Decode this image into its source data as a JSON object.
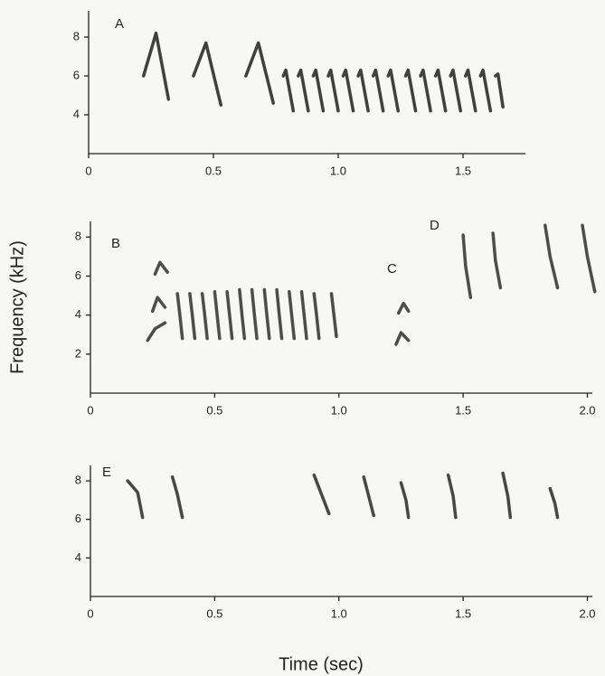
{
  "axis_labels": {
    "x": "Time (sec)",
    "y": "Frequency (kHz)"
  },
  "chart_data": [
    {
      "type": "spectrogram",
      "labels": [
        "A"
      ],
      "xlim": [
        0,
        1.75
      ],
      "ylim": [
        2,
        9.35
      ],
      "xticks": [
        0,
        0.5,
        {
          "value": 1,
          "label": "1.0"
        },
        1.5
      ],
      "yticks": [
        4,
        6,
        8
      ],
      "color": "#2b2b2b",
      "syllables": [
        {
          "x": [
            0.22,
            0.27,
            0.32
          ],
          "y": [
            6,
            8.2,
            4.8
          ]
        },
        {
          "x": [
            0.42,
            0.47,
            0.53
          ],
          "y": [
            6,
            7.7,
            4.5
          ]
        },
        {
          "x": [
            0.63,
            0.68,
            0.74
          ],
          "y": [
            6,
            7.7,
            4.6
          ]
        },
        {
          "x": [
            0.78,
            0.79,
            0.82
          ],
          "y": [
            6,
            6.3,
            4.2
          ]
        },
        {
          "x": [
            0.84,
            0.85,
            0.88
          ],
          "y": [
            6,
            6.3,
            4.2
          ]
        },
        {
          "x": [
            0.9,
            0.91,
            0.94
          ],
          "y": [
            6,
            6.3,
            4.2
          ]
        },
        {
          "x": [
            0.96,
            0.97,
            1.0
          ],
          "y": [
            6,
            6.3,
            4.2
          ]
        },
        {
          "x": [
            1.02,
            1.03,
            1.06
          ],
          "y": [
            6,
            6.3,
            4.2
          ]
        },
        {
          "x": [
            1.08,
            1.09,
            1.12
          ],
          "y": [
            6,
            6.3,
            4.2
          ]
        },
        {
          "x": [
            1.14,
            1.15,
            1.18
          ],
          "y": [
            6,
            6.3,
            4.2
          ]
        },
        {
          "x": [
            1.2,
            1.21,
            1.24
          ],
          "y": [
            6,
            6.3,
            4.2
          ]
        },
        {
          "x": [
            1.27,
            1.28,
            1.31
          ],
          "y": [
            6,
            6.3,
            4.2
          ]
        },
        {
          "x": [
            1.33,
            1.34,
            1.37
          ],
          "y": [
            6,
            6.3,
            4.2
          ]
        },
        {
          "x": [
            1.39,
            1.4,
            1.43
          ],
          "y": [
            6,
            6.3,
            4.2
          ]
        },
        {
          "x": [
            1.45,
            1.46,
            1.49
          ],
          "y": [
            6,
            6.3,
            4.2
          ]
        },
        {
          "x": [
            1.51,
            1.52,
            1.55
          ],
          "y": [
            6,
            6.3,
            4.2
          ]
        },
        {
          "x": [
            1.57,
            1.58,
            1.61
          ],
          "y": [
            6,
            6.3,
            4.2
          ]
        },
        {
          "x": [
            1.63,
            1.64,
            1.66
          ],
          "y": [
            6,
            6.1,
            4.4
          ]
        }
      ]
    },
    {
      "type": "spectrogram",
      "labels": [
        "B",
        "C",
        "D"
      ],
      "xlim": [
        0,
        2.02
      ],
      "ylim": [
        0,
        8.8
      ],
      "xticks": [
        0,
        0.5,
        {
          "value": 1,
          "label": "1.0"
        },
        1.5,
        {
          "value": 2,
          "label": "2.0"
        }
      ],
      "yticks": [
        2,
        4,
        6,
        8
      ],
      "color": "#3a3a3a",
      "syllables": [
        {
          "x": [
            0.26,
            0.28,
            0.31
          ],
          "y": [
            6.1,
            6.7,
            6.2
          ]
        },
        {
          "x": [
            0.25,
            0.27,
            0.3
          ],
          "y": [
            4.2,
            4.9,
            4.4
          ]
        },
        {
          "x": [
            0.23,
            0.26,
            0.3
          ],
          "y": [
            2.7,
            3.3,
            3.6
          ]
        },
        {
          "x": [
            0.35,
            0.36,
            0.37
          ],
          "y": [
            5.1,
            4.0,
            2.8
          ]
        },
        {
          "x": [
            0.4,
            0.41,
            0.42
          ],
          "y": [
            5.1,
            4.0,
            2.8
          ]
        },
        {
          "x": [
            0.45,
            0.46,
            0.47
          ],
          "y": [
            5.1,
            4.0,
            2.8
          ]
        },
        {
          "x": [
            0.5,
            0.51,
            0.52
          ],
          "y": [
            5.2,
            4.0,
            2.8
          ]
        },
        {
          "x": [
            0.55,
            0.56,
            0.57
          ],
          "y": [
            5.2,
            4.0,
            2.8
          ]
        },
        {
          "x": [
            0.6,
            0.61,
            0.62
          ],
          "y": [
            5.3,
            4.0,
            2.8
          ]
        },
        {
          "x": [
            0.65,
            0.66,
            0.67
          ],
          "y": [
            5.3,
            4.0,
            2.8
          ]
        },
        {
          "x": [
            0.7,
            0.71,
            0.72
          ],
          "y": [
            5.3,
            4.0,
            2.8
          ]
        },
        {
          "x": [
            0.75,
            0.76,
            0.77
          ],
          "y": [
            5.3,
            4.0,
            2.8
          ]
        },
        {
          "x": [
            0.8,
            0.81,
            0.82
          ],
          "y": [
            5.2,
            4.0,
            2.8
          ]
        },
        {
          "x": [
            0.85,
            0.86,
            0.87
          ],
          "y": [
            5.2,
            4.0,
            2.8
          ]
        },
        {
          "x": [
            0.9,
            0.91,
            0.92
          ],
          "y": [
            5.1,
            4.0,
            2.8
          ]
        },
        {
          "x": [
            0.97,
            0.98,
            0.99
          ],
          "y": [
            5.1,
            4.0,
            2.9
          ]
        },
        {
          "x": [
            1.24,
            1.26,
            1.28
          ],
          "y": [
            4.1,
            4.6,
            4.2
          ]
        },
        {
          "x": [
            1.23,
            1.25,
            1.28
          ],
          "y": [
            2.5,
            3.1,
            2.7
          ]
        },
        {
          "x": [
            1.5,
            1.51,
            1.53
          ],
          "y": [
            8.1,
            6.5,
            4.9
          ]
        },
        {
          "x": [
            1.62,
            1.63,
            1.65
          ],
          "y": [
            8.2,
            6.8,
            5.4
          ]
        },
        {
          "x": [
            1.83,
            1.85,
            1.88
          ],
          "y": [
            8.6,
            7.0,
            5.4
          ]
        },
        {
          "x": [
            1.98,
            2.0,
            2.03
          ],
          "y": [
            8.6,
            7.0,
            5.2
          ]
        }
      ]
    },
    {
      "type": "spectrogram",
      "labels": [
        "E"
      ],
      "xlim": [
        0,
        2.02
      ],
      "ylim": [
        2,
        8.8
      ],
      "xticks": [
        0,
        0.5,
        {
          "value": 1,
          "label": "1.0"
        },
        1.5,
        {
          "value": 2,
          "label": "2.0"
        }
      ],
      "yticks": [
        4,
        6,
        8
      ],
      "color": "#333333",
      "syllables": [
        {
          "x": [
            0.15,
            0.19,
            0.21
          ],
          "y": [
            8.0,
            7.4,
            6.1
          ]
        },
        {
          "x": [
            0.33,
            0.35,
            0.37
          ],
          "y": [
            8.2,
            7.3,
            6.1
          ]
        },
        {
          "x": [
            0.9,
            0.93,
            0.96
          ],
          "y": [
            8.3,
            7.3,
            6.3
          ]
        },
        {
          "x": [
            1.1,
            1.12,
            1.14
          ],
          "y": [
            8.2,
            7.2,
            6.2
          ]
        },
        {
          "x": [
            1.25,
            1.27,
            1.28
          ],
          "y": [
            7.9,
            7.0,
            6.1
          ]
        },
        {
          "x": [
            1.44,
            1.46,
            1.47
          ],
          "y": [
            8.3,
            7.2,
            6.1
          ]
        },
        {
          "x": [
            1.66,
            1.68,
            1.69
          ],
          "y": [
            8.4,
            7.2,
            6.1
          ]
        },
        {
          "x": [
            1.85,
            1.87,
            1.88
          ],
          "y": [
            7.6,
            6.8,
            6.1
          ]
        }
      ]
    }
  ]
}
